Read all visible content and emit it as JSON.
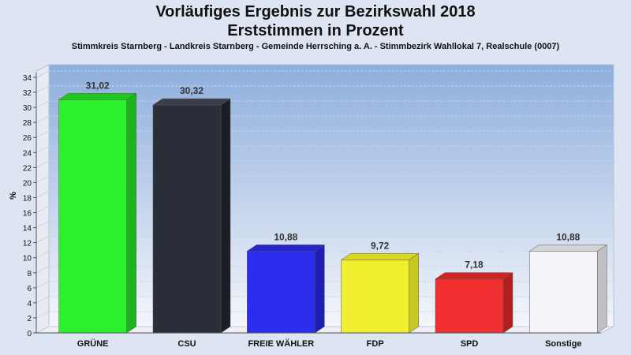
{
  "chart_data": {
    "type": "bar",
    "title_line1": "Vorläufiges Ergebnis zur Bezirkswahl 2018",
    "title_line2": "Erststimmen in Prozent",
    "subtitle": "Stimmkreis Starnberg - Landkreis Starnberg - Gemeinde Herrsching a. A. - Stimmbezirk Wahllokal 7, Realschule (0007)",
    "ylabel": "%",
    "ylim": [
      0,
      34
    ],
    "ytick_step": 2,
    "grid": true,
    "categories": [
      "GRÜNE",
      "CSU",
      "FREIE WÄHLER",
      "FDP",
      "SPD",
      "Sonstige"
    ],
    "values": [
      31.02,
      30.32,
      10.88,
      9.72,
      7.18,
      10.88
    ],
    "value_labels": [
      "31,02",
      "30,32",
      "10,88",
      "9,72",
      "7,18",
      "10,88"
    ],
    "colors": [
      "#2cf02c",
      "#2a2e38",
      "#2d2df0",
      "#f0f030",
      "#f03030",
      "#f4f4f8"
    ],
    "side_colors": [
      "#1eb41e",
      "#1a1d24",
      "#1e1eb4",
      "#c8c81e",
      "#b41e1e",
      "#c0c0c4"
    ],
    "top_colors": [
      "#20c820",
      "#3a3e48",
      "#2424c8",
      "#d8d820",
      "#d02424",
      "#d4d4d8"
    ]
  }
}
